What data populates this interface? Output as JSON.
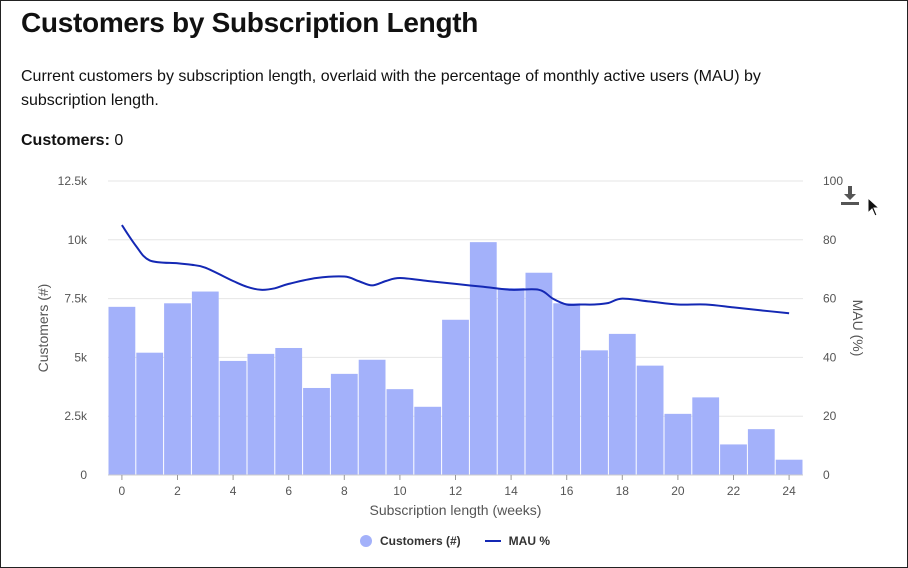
{
  "header": {
    "title": "Customers by Subscription Length",
    "description": "Current customers by subscription length, overlaid with the percentage of monthly active users (MAU) by subscription length.",
    "metric_label": "Customers:",
    "metric_value": "0"
  },
  "colors": {
    "bar": "#a3b1fa",
    "line": "#1428b4",
    "grid": "#e6e6e6",
    "axis_text": "#555555"
  },
  "toolbar": {
    "download_icon": "download-icon"
  },
  "chart_data": {
    "type": "bar",
    "title": "",
    "xlabel": "Subscription length (weeks)",
    "ylabel_left": "Customers (#)",
    "ylabel_right": "MAU (%)",
    "x": [
      0,
      1,
      2,
      3,
      4,
      5,
      6,
      7,
      8,
      9,
      10,
      11,
      12,
      13,
      14,
      15,
      16,
      17,
      18,
      19,
      20,
      21,
      22,
      23,
      24
    ],
    "xlim": [
      -0.5,
      24.5
    ],
    "xticks": [
      0,
      2,
      4,
      6,
      8,
      10,
      12,
      14,
      16,
      18,
      20,
      22,
      24
    ],
    "xtick_labels": [
      "0",
      "2",
      "4",
      "6",
      "8",
      "10",
      "12",
      "14",
      "16",
      "18",
      "20",
      "22",
      "24"
    ],
    "ylim_left": [
      0,
      12500
    ],
    "yticks_left": [
      0,
      2500,
      5000,
      7500,
      10000,
      12500
    ],
    "ytick_labels_left": [
      "0",
      "2.5k",
      "5k",
      "7.5k",
      "10k",
      "12.5k"
    ],
    "ylim_right": [
      0,
      100
    ],
    "yticks_right": [
      0,
      20,
      40,
      60,
      80,
      100
    ],
    "ytick_labels_right": [
      "0",
      "20",
      "40",
      "60",
      "80",
      "100"
    ],
    "grid": true,
    "legend_position": "bottom-center",
    "series": [
      {
        "name": "Customers (#)",
        "type": "bar",
        "axis": "left",
        "values": [
          7150,
          5200,
          7300,
          7800,
          4850,
          5150,
          5400,
          3700,
          4300,
          4900,
          3650,
          2900,
          6600,
          9900,
          7950,
          8600,
          7300,
          5300,
          6000,
          4650,
          2600,
          3300,
          1300,
          1950,
          650
        ]
      },
      {
        "name": "MAU %",
        "type": "line",
        "axis": "right",
        "x": [
          0,
          0.5,
          1,
          2,
          2.5,
          3,
          4,
          4.5,
          5,
          5.5,
          6,
          7,
          8,
          8.5,
          9,
          9.5,
          10,
          11,
          12,
          13,
          14,
          15,
          15.5,
          16,
          16.5,
          17,
          17.5,
          18,
          19,
          20,
          21,
          22,
          23,
          24
        ],
        "values": [
          85,
          78,
          73,
          72,
          71.5,
          70.5,
          66,
          64,
          63,
          63.5,
          65,
          67,
          67.5,
          66,
          64.5,
          66,
          67,
          66,
          65,
          64,
          63,
          63,
          60,
          58,
          58,
          58,
          58.5,
          60,
          59,
          58,
          58,
          57,
          56,
          55
        ]
      }
    ]
  }
}
